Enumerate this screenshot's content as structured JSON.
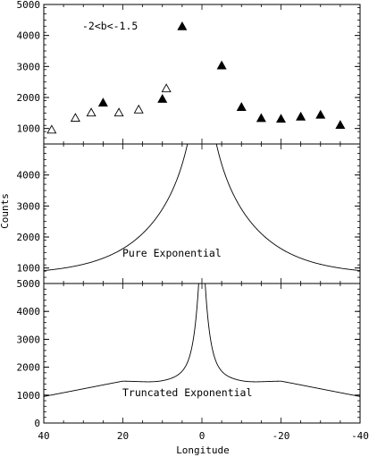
{
  "chart_data": {
    "type": "scatter",
    "xlabel": "Longitude",
    "ylabel": "Counts",
    "x_range": [
      40,
      -40
    ],
    "x_ticks": [
      40,
      20,
      0,
      -20,
      -40
    ],
    "panels": [
      {
        "id": "observed",
        "annotation": "-2<b<-1.5",
        "ylim": [
          500,
          5000
        ],
        "y_ticks": [
          1000,
          2000,
          3000,
          4000,
          5000
        ],
        "series": [
          {
            "marker": "triangle-open",
            "points": [
              [
                38,
                950
              ],
              [
                32,
                1330
              ],
              [
                28,
                1500
              ],
              [
                21,
                1500
              ],
              [
                16,
                1600
              ],
              [
                9,
                2280
              ]
            ]
          },
          {
            "marker": "triangle-filled",
            "points": [
              [
                25,
                1820
              ],
              [
                10,
                1940
              ],
              [
                5,
                4280
              ],
              [
                -5,
                3020
              ],
              [
                -10,
                1680
              ],
              [
                -15,
                1320
              ],
              [
                -20,
                1300
              ],
              [
                -25,
                1370
              ],
              [
                -30,
                1430
              ],
              [
                -35,
                1100
              ]
            ]
          }
        ]
      },
      {
        "id": "pure",
        "annotation": "Pure Exponential",
        "ylim": [
          500,
          5000
        ],
        "y_ticks": [
          1000,
          2000,
          3000,
          4000
        ],
        "model": "pure"
      },
      {
        "id": "truncated",
        "annotation": "Truncated Exponential",
        "ylim": [
          0,
          5000
        ],
        "y_ticks": [
          0,
          1000,
          2000,
          3000,
          4000,
          5000
        ],
        "model": "truncated"
      }
    ]
  }
}
